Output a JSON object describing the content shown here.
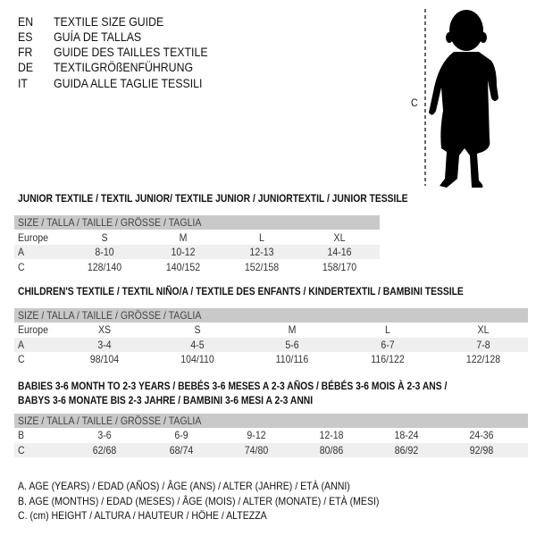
{
  "header": {
    "languages": [
      {
        "code": "EN",
        "title": "TEXTILE SIZE GUIDE"
      },
      {
        "code": "ES",
        "title": "GUÍA DE TALLAS"
      },
      {
        "code": "FR",
        "title": "GUIDE DES TAILLES TEXTILE"
      },
      {
        "code": "DE",
        "title": "TEXTILGRÖßENFÜHRUNG"
      },
      {
        "code": "IT",
        "title": "GUIDA ALLE TAGLIE TESSILI"
      }
    ]
  },
  "figure": {
    "label": "C",
    "icon": "child-silhouette"
  },
  "junior": {
    "title": "JUNIOR TEXTILE / TEXTIL JUNIOR/ TEXTILE JUNIOR / JUNIORTEXTIL / JUNIOR TESSILE",
    "header": "SIZE / TALLA / TAILLE / GRÖSSE / TAGLIA",
    "rows": [
      {
        "label": "Europe",
        "values": [
          "S",
          "M",
          "L",
          "XL"
        ]
      },
      {
        "label": "A",
        "values": [
          "8-10",
          "10-12",
          "12-13",
          "14-16"
        ]
      },
      {
        "label": "C",
        "values": [
          "128/140",
          "140/152",
          "152/158",
          "158/170"
        ]
      }
    ]
  },
  "children": {
    "title": "CHILDREN'S TEXTILE / TEXTIL NIÑO/A / TEXTILE DES ENFANTS / KINDERTEXTIL / BAMBINI TESSILE",
    "header": "SIZE / TALLA / TAILLE / GRÖSSE / TAGLIA",
    "rows": [
      {
        "label": "Europe",
        "values": [
          "XS",
          "S",
          "M",
          "L",
          "XL"
        ]
      },
      {
        "label": "A",
        "values": [
          "3-4",
          "4-5",
          "5-6",
          "6-7",
          "7-8"
        ]
      },
      {
        "label": "C",
        "values": [
          "98/104",
          "104/110",
          "110/116",
          "116/122",
          "122/128"
        ]
      }
    ]
  },
  "babies": {
    "title_line1": "BABIES 3-6 MONTH TO 2-3 YEARS / BEBÉS 3-6 MESES A 2-3 AÑOS / BÉBÉS 3-6 MOIS À 2-3 ANS /",
    "title_line2": "BABYS 3-6 MONATE BIS 2-3 JAHRE / BAMBINI 3-6 MESI A 2-3 ANNI",
    "header": "SIZE / TALLA / TAILLE / GRÖSSE / TAGLIA",
    "rows": [
      {
        "label": "B",
        "values": [
          "3-6",
          "6-9",
          "9-12",
          "12-18",
          "18-24",
          "24-36"
        ]
      },
      {
        "label": "C",
        "values": [
          "62/68",
          "68/74",
          "74/80",
          "80/86",
          "86/92",
          "92/98"
        ]
      }
    ]
  },
  "legend": [
    "A. AGE (YEARS) / EDAD (AÑOS) / ÂGE (ANS) / ALTER (JAHRE) / ETÀ (ANNI)",
    "B. AGE (MONTHS) / EDAD (MESES) / ÂGE (MOIS) / ALTER (MONATE) / ETÀ (MESI)",
    "C. (cm) HEIGHT / ALTURA / HAUTEUR / HÖHE / ALTEZZA"
  ]
}
